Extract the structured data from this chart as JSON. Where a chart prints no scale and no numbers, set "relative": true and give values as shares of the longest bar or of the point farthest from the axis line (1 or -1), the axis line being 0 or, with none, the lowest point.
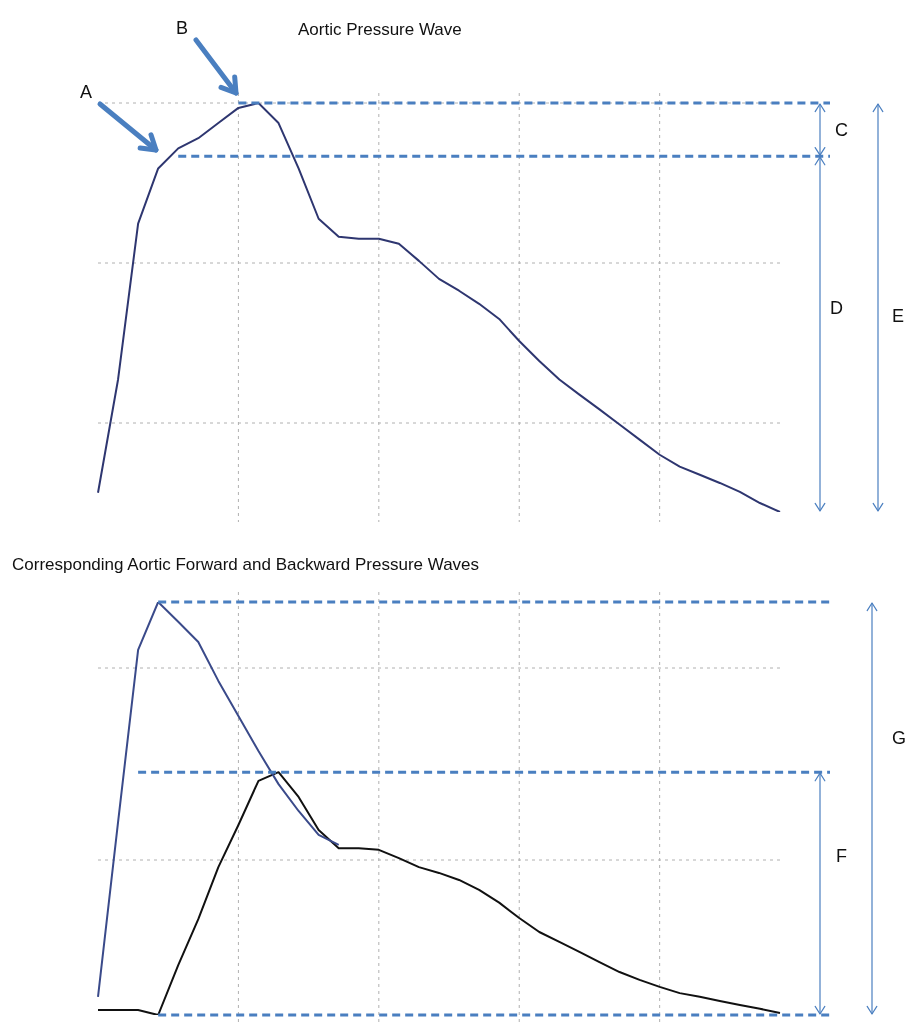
{
  "chart_data": [
    {
      "type": "line",
      "title": "Aortic Pressure Wave",
      "relative": true,
      "grid": true,
      "legend": false,
      "marker": "none",
      "line_style": "solid",
      "categories": [
        null,
        null,
        null,
        null,
        null,
        null,
        null,
        null,
        null,
        null,
        null,
        null,
        null,
        null,
        null,
        null,
        null,
        null,
        null,
        null,
        null,
        null,
        null,
        null,
        null,
        null,
        null,
        null,
        null,
        null,
        null,
        null,
        null,
        null,
        null
      ],
      "series": [
        {
          "color": "#2e3670",
          "values": [
            0.047,
            0.324,
            0.705,
            0.84,
            0.889,
            0.914,
            0.951,
            0.988,
            1,
            0.951,
            0.84,
            0.717,
            0.673,
            0.668,
            0.668,
            0.656,
            0.614,
            0.57,
            0.541,
            0.509,
            0.472,
            0.418,
            0.369,
            0.324,
            0.287,
            0.251,
            0.214,
            0.177,
            0.14,
            0.111,
            0.091,
            0.071,
            0.049,
            0.022,
            0
          ]
        }
      ],
      "ref_lines": [
        {
          "axis": "y",
          "value": 1,
          "color": "#4a7fc0",
          "line_style": "dashed"
        },
        {
          "axis": "y",
          "value": 0.87,
          "color": "#4a7fc0",
          "line_style": "dashed"
        }
      ],
      "annotations": [
        "A",
        "B",
        "C",
        "D",
        "E"
      ]
    },
    {
      "type": "line",
      "title": "Corresponding Aortic Forward and Backward Pressure Waves",
      "relative": true,
      "grid": true,
      "legend": false,
      "marker": "none",
      "line_style": "solid",
      "categories": [
        null,
        null,
        null,
        null,
        null,
        null,
        null,
        null,
        null,
        null,
        null,
        null,
        null,
        null,
        null,
        null,
        null,
        null,
        null,
        null,
        null,
        null,
        null,
        null,
        null,
        null,
        null,
        null,
        null,
        null,
        null,
        null,
        null,
        null,
        null
      ],
      "series": [
        {
          "color": "#3a4a8a",
          "values": [
            0.044,
            0.467,
            0.884,
            1,
            0.952,
            0.903,
            0.809,
            0.724,
            0.639,
            0.559,
            0.494,
            0.436,
            0.412,
            null,
            null,
            null,
            null,
            null,
            null,
            null,
            null,
            null,
            null,
            null,
            null,
            null,
            null,
            null,
            null,
            null,
            null,
            null,
            null,
            null,
            null
          ]
        },
        {
          "color": "#111111",
          "values": [
            0.012,
            0.012,
            0.012,
            0,
            0.121,
            0.232,
            0.358,
            0.46,
            0.567,
            0.588,
            0.528,
            0.448,
            0.404,
            0.404,
            0.4,
            0.38,
            0.358,
            0.344,
            0.327,
            0.303,
            0.272,
            0.235,
            0.201,
            0.177,
            0.153,
            0.128,
            0.104,
            0.085,
            0.068,
            0.053,
            0.044,
            0.034,
            0.024,
            0.015,
            0.005
          ]
        }
      ],
      "ref_lines": [
        {
          "axis": "y",
          "value": 1,
          "color": "#4a7fc0",
          "line_style": "dashed"
        },
        {
          "axis": "y",
          "value": 0.588,
          "color": "#4a7fc0",
          "line_style": "dashed"
        },
        {
          "axis": "y",
          "value": 0,
          "color": "#4a7fc0",
          "line_style": "dashed"
        }
      ],
      "annotations": [
        "F",
        "G"
      ]
    }
  ]
}
